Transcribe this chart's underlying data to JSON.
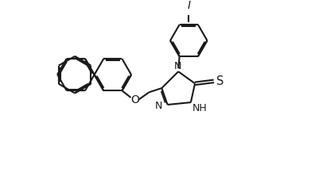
{
  "background_color": "#ffffff",
  "line_color": "#1a1a1a",
  "line_width": 1.5,
  "dbo": 0.06,
  "figsize": [
    3.91,
    2.37
  ],
  "dpi": 100,
  "font_size": 9.0,
  "xlim": [
    -0.5,
    10.2
  ],
  "ylim": [
    -0.3,
    7.2
  ]
}
